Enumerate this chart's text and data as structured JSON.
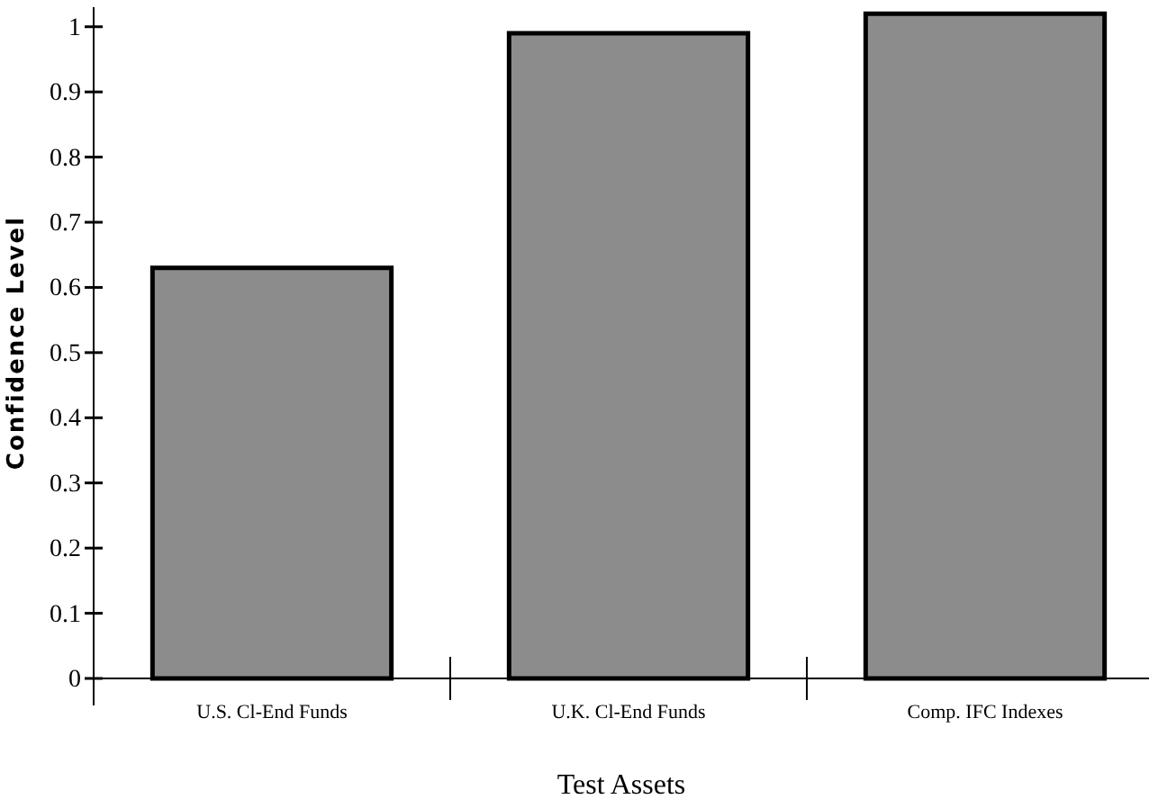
{
  "chart_data": {
    "type": "bar",
    "xlabel": "Test Assets",
    "ylabel": "Confidence Level",
    "categories": [
      "U.S. Cl-End Funds",
      "U.K. Cl-End Funds",
      "Comp. IFC Indexes"
    ],
    "values": [
      0.63,
      0.99,
      1.02
    ],
    "color": "#8c8c8c",
    "ylim": [
      0,
      1.03
    ],
    "yticks": [
      0,
      0.1,
      0.2,
      0.3,
      0.4,
      0.5,
      0.6,
      0.7,
      0.8,
      0.9,
      1
    ],
    "grid": false
  }
}
